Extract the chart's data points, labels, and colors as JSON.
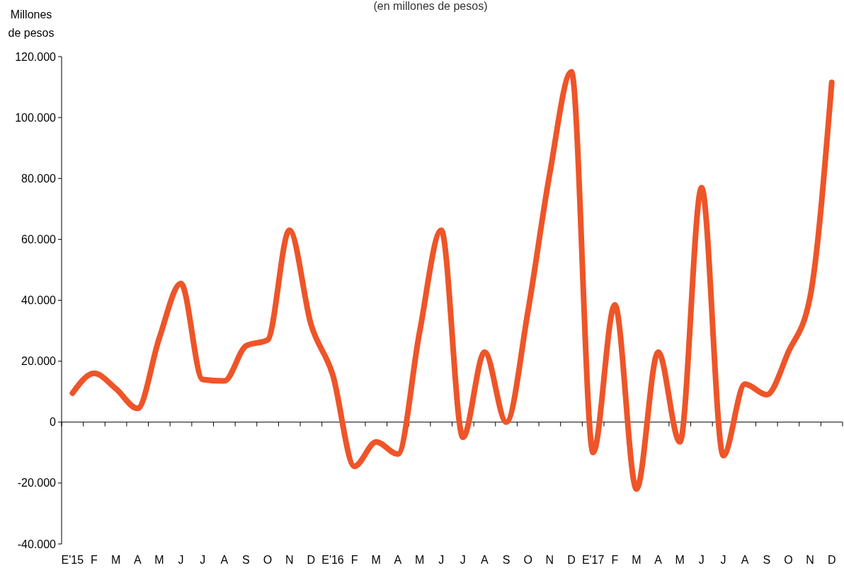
{
  "chart_data": {
    "type": "line",
    "subtitle": "(en millones de pesos)",
    "ylabel": "Millones de pesos",
    "categories": [
      "E'15",
      "F",
      "M",
      "A",
      "M",
      "J",
      "J",
      "A",
      "S",
      "O",
      "N",
      "D",
      "E'16",
      "F",
      "M",
      "A",
      "M",
      "J",
      "J",
      "A",
      "S",
      "O",
      "N",
      "D",
      "E'17",
      "F",
      "M",
      "A",
      "M",
      "J",
      "J",
      "A",
      "S",
      "O",
      "N",
      "D"
    ],
    "series": [
      {
        "color": "#ee5528",
        "values": [
          9500,
          16000,
          11000,
          4500,
          27500,
          45500,
          14000,
          13500,
          25000,
          27000,
          63000,
          32000,
          15500,
          -14500,
          -6500,
          -10500,
          29500,
          63000,
          -5000,
          23000,
          0,
          36500,
          81500,
          115000,
          -10000,
          38500,
          -22000,
          23000,
          -6500,
          77000,
          -11000,
          12500,
          9000,
          23000,
          41000,
          111500
        ]
      }
    ],
    "ylim": [
      -40000,
      120000
    ],
    "yticks": [
      {
        "value": -40000,
        "label": "-40.000"
      },
      {
        "value": -20000,
        "label": "-20.000"
      },
      0,
      {
        "value": 20000,
        "label": "20.000"
      },
      {
        "value": 40000,
        "label": "40.000"
      },
      {
        "value": 60000,
        "label": "60.000"
      },
      {
        "value": 80000,
        "label": "80.000"
      },
      {
        "value": 100000,
        "label": "100.000"
      },
      {
        "value": 120000,
        "label": "120.000"
      }
    ],
    "marker": "none",
    "line_style": "solid"
  }
}
